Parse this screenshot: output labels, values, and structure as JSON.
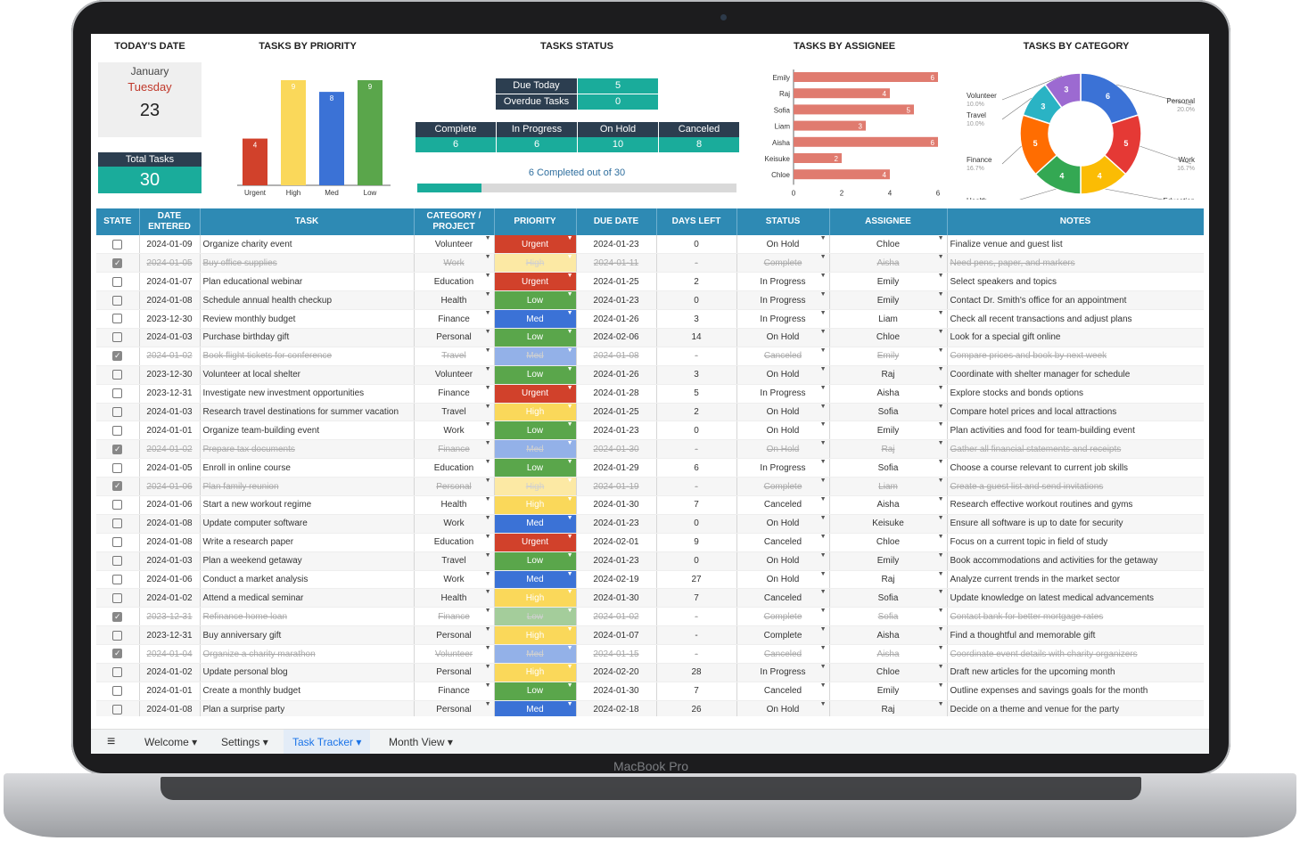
{
  "dashboard": {
    "today_title": "TODAY'S DATE",
    "month": "January",
    "weekday": "Tuesday",
    "day": "23",
    "total_label": "Total Tasks",
    "total_value": "30",
    "priority_title": "TASKS BY PRIORITY",
    "status_title": "TASKS STATUS",
    "assignee_title": "TASKS BY ASSIGNEE",
    "category_title": "TASKS BY CATEGORY",
    "due_today_label": "Due Today",
    "due_today_value": "5",
    "overdue_label": "Overdue Tasks",
    "overdue_value": "0",
    "status_cols": [
      {
        "label": "Complete",
        "value": "6"
      },
      {
        "label": "In Progress",
        "value": "6"
      },
      {
        "label": "On Hold",
        "value": "10"
      },
      {
        "label": "Canceled",
        "value": "8"
      }
    ],
    "progress_text": "6 Completed out of 30",
    "progress_fraction": 0.2
  },
  "chart_data": [
    {
      "type": "bar",
      "title": "TASKS BY PRIORITY",
      "categories": [
        "Urgent",
        "High",
        "Med",
        "Low"
      ],
      "values": [
        4,
        9,
        8,
        9
      ],
      "colors": [
        "#d1412b",
        "#fad85a",
        "#3b72d6",
        "#5aa64b"
      ]
    },
    {
      "type": "bar",
      "orientation": "horizontal",
      "title": "TASKS BY ASSIGNEE",
      "categories": [
        "Emily",
        "Raj",
        "Sofia",
        "Liam",
        "Aisha",
        "Keisuke",
        "Chloe"
      ],
      "values": [
        6,
        4,
        5,
        3,
        6,
        2,
        4
      ],
      "xticks": [
        "0",
        "2",
        "4",
        "6"
      ],
      "color": "#e07b6f"
    },
    {
      "type": "pie",
      "title": "TASKS BY CATEGORY",
      "categories": [
        "Personal",
        "Work",
        "Education",
        "Health",
        "Finance",
        "Travel",
        "Volunteer"
      ],
      "values": [
        6,
        5,
        4,
        4,
        5,
        3,
        3
      ],
      "percents": [
        "20.0%",
        "16.7%",
        "13.3%",
        "13.3%",
        "16.7%",
        "10.0%",
        "10.0%"
      ],
      "colors": [
        "#3b72d6",
        "#e53935",
        "#fbbc04",
        "#34a853",
        "#ff6d01",
        "#2ab3c4",
        "#9c6ad1"
      ]
    }
  ],
  "table": {
    "headers": [
      "STATE",
      "DATE ENTERED",
      "TASK",
      "CATEGORY / PROJECT",
      "PRIORITY",
      "DUE DATE",
      "DAYS LEFT",
      "STATUS",
      "ASSIGNEE",
      "NOTES"
    ],
    "priority_colors": {
      "Urgent": "#d1412b",
      "High": "#fad85a",
      "Med": "#3b72d6",
      "Low": "#5aa64b"
    },
    "rows": [
      {
        "checked": false,
        "date": "2024-01-09",
        "task": "Organize charity event",
        "cat": "Volunteer",
        "priority": "Urgent",
        "due": "2024-01-23",
        "days": "0",
        "status": "On Hold",
        "assignee": "Chloe",
        "notes": "Finalize venue and guest list"
      },
      {
        "checked": true,
        "date": "2024-01-05",
        "task": "Buy office supplies",
        "cat": "Work",
        "priority": "High",
        "due": "2024-01-11",
        "days": "-",
        "status": "Complete",
        "assignee": "Aisha",
        "notes": "Need pens, paper, and markers"
      },
      {
        "checked": false,
        "date": "2024-01-07",
        "task": "Plan educational webinar",
        "cat": "Education",
        "priority": "Urgent",
        "due": "2024-01-25",
        "days": "2",
        "status": "In Progress",
        "assignee": "Emily",
        "notes": "Select speakers and topics"
      },
      {
        "checked": false,
        "date": "2024-01-08",
        "task": "Schedule annual health checkup",
        "cat": "Health",
        "priority": "Low",
        "due": "2024-01-23",
        "days": "0",
        "status": "In Progress",
        "assignee": "Emily",
        "notes": "Contact Dr. Smith's office for an appointment"
      },
      {
        "checked": false,
        "date": "2023-12-30",
        "task": "Review monthly budget",
        "cat": "Finance",
        "priority": "Med",
        "due": "2024-01-26",
        "days": "3",
        "status": "In Progress",
        "assignee": "Liam",
        "notes": "Check all recent transactions and adjust plans"
      },
      {
        "checked": false,
        "date": "2024-01-03",
        "task": "Purchase birthday gift",
        "cat": "Personal",
        "priority": "Low",
        "due": "2024-02-06",
        "days": "14",
        "status": "On Hold",
        "assignee": "Chloe",
        "notes": "Look for a special gift online"
      },
      {
        "checked": true,
        "date": "2024-01-02",
        "task": "Book flight tickets for conference",
        "cat": "Travel",
        "priority": "Med",
        "due": "2024-01-08",
        "days": "-",
        "status": "Canceled",
        "assignee": "Emily",
        "notes": "Compare prices and book by next week"
      },
      {
        "checked": false,
        "date": "2023-12-30",
        "task": "Volunteer at local shelter",
        "cat": "Volunteer",
        "priority": "Low",
        "due": "2024-01-26",
        "days": "3",
        "status": "On Hold",
        "assignee": "Raj",
        "notes": "Coordinate with shelter manager for schedule"
      },
      {
        "checked": false,
        "date": "2023-12-31",
        "task": "Investigate new investment opportunities",
        "cat": "Finance",
        "priority": "Urgent",
        "due": "2024-01-28",
        "days": "5",
        "status": "In Progress",
        "assignee": "Aisha",
        "notes": "Explore stocks and bonds options"
      },
      {
        "checked": false,
        "date": "2024-01-03",
        "task": "Research travel destinations for summer vacation",
        "cat": "Travel",
        "priority": "High",
        "due": "2024-01-25",
        "days": "2",
        "status": "On Hold",
        "assignee": "Sofia",
        "notes": "Compare hotel prices and local attractions"
      },
      {
        "checked": false,
        "date": "2024-01-01",
        "task": "Organize team-building event",
        "cat": "Work",
        "priority": "Low",
        "due": "2024-01-23",
        "days": "0",
        "status": "On Hold",
        "assignee": "Emily",
        "notes": "Plan activities and food for team-building event"
      },
      {
        "checked": true,
        "date": "2024-01-02",
        "task": "Prepare tax documents",
        "cat": "Finance",
        "priority": "Med",
        "due": "2024-01-30",
        "days": "-",
        "status": "On Hold",
        "assignee": "Raj",
        "notes": "Gather all financial statements and receipts"
      },
      {
        "checked": false,
        "date": "2024-01-05",
        "task": "Enroll in online course",
        "cat": "Education",
        "priority": "Low",
        "due": "2024-01-29",
        "days": "6",
        "status": "In Progress",
        "assignee": "Sofia",
        "notes": "Choose a course relevant to current job skills"
      },
      {
        "checked": true,
        "date": "2024-01-06",
        "task": "Plan family reunion",
        "cat": "Personal",
        "priority": "High",
        "due": "2024-01-19",
        "days": "-",
        "status": "Complete",
        "assignee": "Liam",
        "notes": "Create a guest list and send invitations"
      },
      {
        "checked": false,
        "date": "2024-01-06",
        "task": "Start a new workout regime",
        "cat": "Health",
        "priority": "High",
        "due": "2024-01-30",
        "days": "7",
        "status": "Canceled",
        "assignee": "Aisha",
        "notes": "Research effective workout routines and gyms"
      },
      {
        "checked": false,
        "date": "2024-01-08",
        "task": "Update computer software",
        "cat": "Work",
        "priority": "Med",
        "due": "2024-01-23",
        "days": "0",
        "status": "On Hold",
        "assignee": "Keisuke",
        "notes": "Ensure all software is up to date for security"
      },
      {
        "checked": false,
        "date": "2024-01-08",
        "task": "Write a research paper",
        "cat": "Education",
        "priority": "Urgent",
        "due": "2024-02-01",
        "days": "9",
        "status": "Canceled",
        "assignee": "Chloe",
        "notes": "Focus on a current topic in field of study"
      },
      {
        "checked": false,
        "date": "2024-01-03",
        "task": "Plan a weekend getaway",
        "cat": "Travel",
        "priority": "Low",
        "due": "2024-01-23",
        "days": "0",
        "status": "On Hold",
        "assignee": "Emily",
        "notes": "Book accommodations and activities for the getaway"
      },
      {
        "checked": false,
        "date": "2024-01-06",
        "task": "Conduct a market analysis",
        "cat": "Work",
        "priority": "Med",
        "due": "2024-02-19",
        "days": "27",
        "status": "On Hold",
        "assignee": "Raj",
        "notes": "Analyze current trends in the market sector"
      },
      {
        "checked": false,
        "date": "2024-01-02",
        "task": "Attend a medical seminar",
        "cat": "Health",
        "priority": "High",
        "due": "2024-01-30",
        "days": "7",
        "status": "Canceled",
        "assignee": "Sofia",
        "notes": "Update knowledge on latest medical advancements"
      },
      {
        "checked": true,
        "date": "2023-12-31",
        "task": "Refinance home loan",
        "cat": "Finance",
        "priority": "Low",
        "due": "2024-01-02",
        "days": "-",
        "status": "Complete",
        "assignee": "Sofia",
        "notes": "Contact bank for better mortgage rates"
      },
      {
        "checked": false,
        "date": "2023-12-31",
        "task": "Buy anniversary gift",
        "cat": "Personal",
        "priority": "High",
        "due": "2024-01-07",
        "days": "-",
        "status": "Complete",
        "assignee": "Aisha",
        "notes": "Find a thoughtful and memorable gift"
      },
      {
        "checked": true,
        "date": "2024-01-04",
        "task": "Organize a charity marathon",
        "cat": "Volunteer",
        "priority": "Med",
        "due": "2024-01-15",
        "days": "-",
        "status": "Canceled",
        "assignee": "Aisha",
        "notes": "Coordinate event details with charity organizers"
      },
      {
        "checked": false,
        "date": "2024-01-02",
        "task": "Update personal blog",
        "cat": "Personal",
        "priority": "High",
        "due": "2024-02-20",
        "days": "28",
        "status": "In Progress",
        "assignee": "Chloe",
        "notes": "Draft new articles for the upcoming month"
      },
      {
        "checked": false,
        "date": "2024-01-01",
        "task": "Create a monthly budget",
        "cat": "Finance",
        "priority": "Low",
        "due": "2024-01-30",
        "days": "7",
        "status": "Canceled",
        "assignee": "Emily",
        "notes": "Outline expenses and savings goals for the month"
      },
      {
        "checked": false,
        "date": "2024-01-08",
        "task": "Plan a surprise party",
        "cat": "Personal",
        "priority": "Med",
        "due": "2024-02-18",
        "days": "26",
        "status": "On Hold",
        "assignee": "Raj",
        "notes": "Decide on a theme and venue for the party"
      }
    ]
  },
  "sheet_tabs": [
    "Welcome",
    "Settings",
    "Task Tracker",
    "Month View"
  ],
  "active_tab": "Task Tracker",
  "laptop_label": "MacBook Pro"
}
